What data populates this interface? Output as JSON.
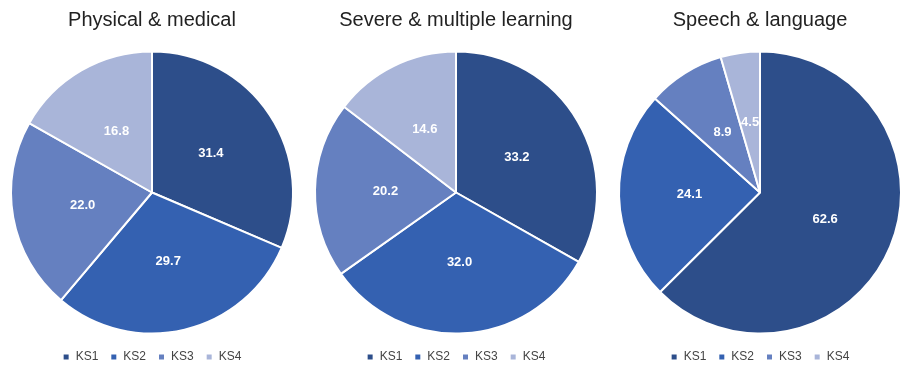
{
  "chart_data": [
    {
      "type": "pie",
      "title": "Physical & medical",
      "categories": [
        "KS1",
        "KS2",
        "KS3",
        "KS4"
      ],
      "values": [
        31.4,
        29.7,
        22.0,
        16.8
      ],
      "value_labels": [
        "31.4",
        "29.7",
        "22.0",
        "16.8"
      ],
      "colors": [
        "#2d4e8a",
        "#3461b1",
        "#6580c0",
        "#a9b5d9"
      ],
      "data_labels": true,
      "legend": "bottom"
    },
    {
      "type": "pie",
      "title": "Severe & multiple learning",
      "categories": [
        "KS1",
        "KS2",
        "KS3",
        "KS4"
      ],
      "values": [
        33.2,
        32.0,
        20.2,
        14.6
      ],
      "value_labels": [
        "33.2",
        "32.0",
        "20.2",
        "14.6"
      ],
      "colors": [
        "#2d4e8a",
        "#3461b1",
        "#6580c0",
        "#a9b5d9"
      ],
      "data_labels": true,
      "legend": "bottom"
    },
    {
      "type": "pie",
      "title": "Speech & language",
      "categories": [
        "KS1",
        "KS2",
        "KS3",
        "KS4"
      ],
      "values": [
        62.6,
        24.1,
        8.9,
        4.5
      ],
      "colors": [
        "#2d4e8a",
        "#3461b1",
        "#6580c0",
        "#a9b5d9"
      ],
      "data_labels": true,
      "legend": "bottom"
    }
  ]
}
